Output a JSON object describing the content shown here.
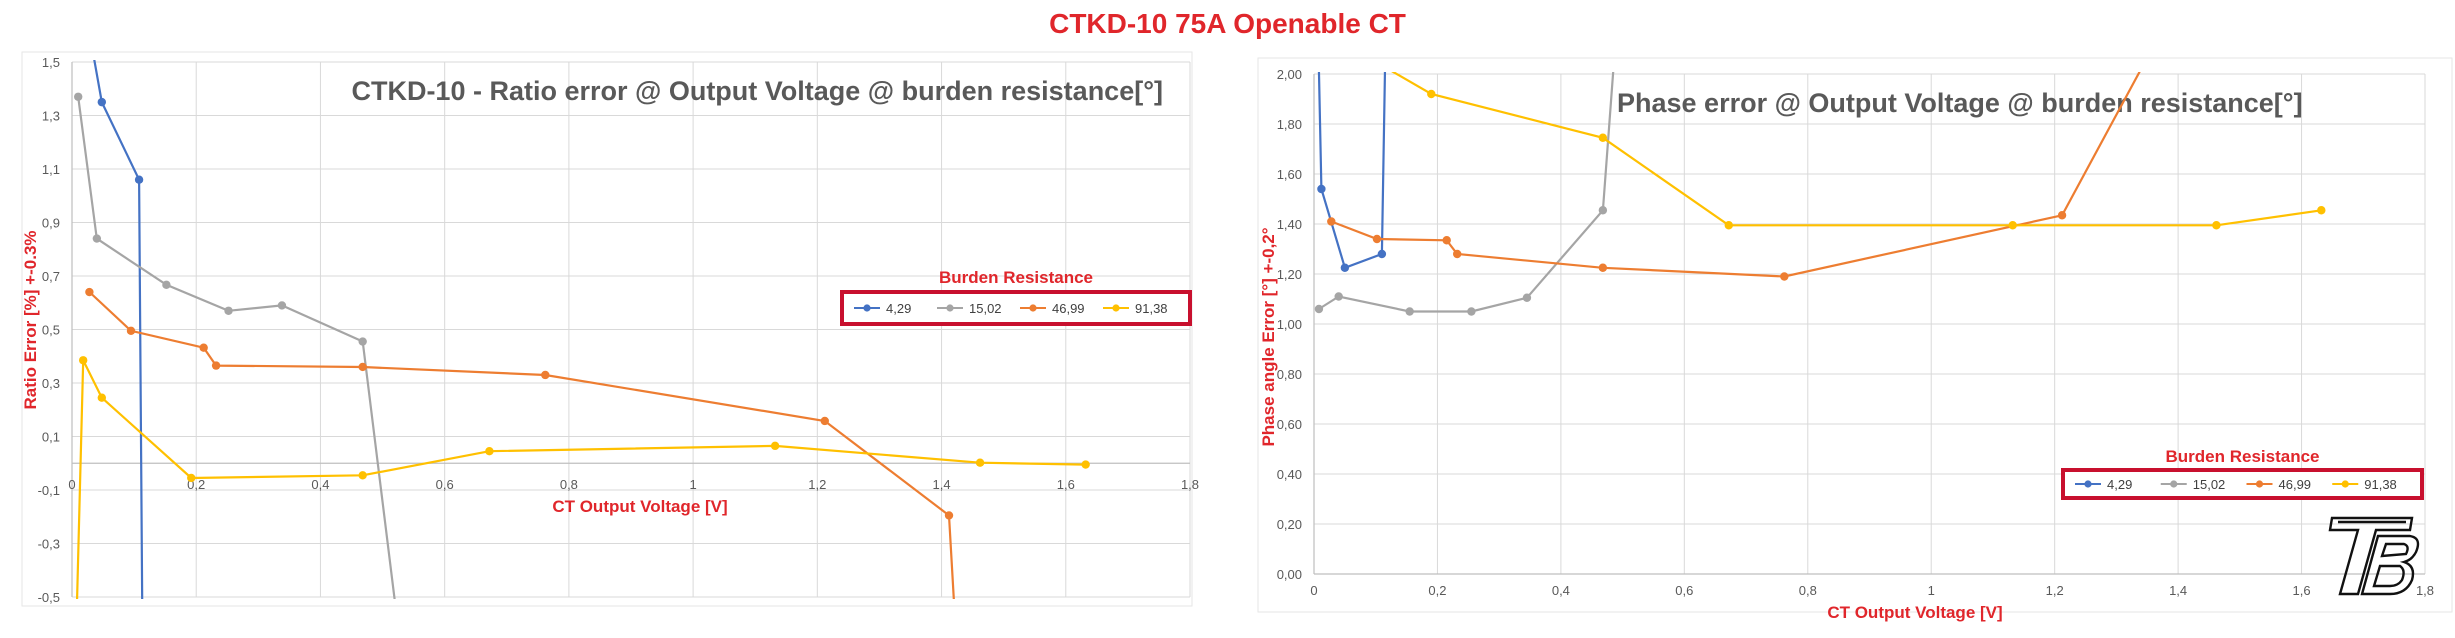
{
  "page_title": "CTKD-10 75A Openable CT",
  "colors": {
    "4,29": "#4472c4",
    "15,02": "#a5a5a5",
    "46,99": "#ed7d31",
    "91,38": "#ffc000"
  },
  "logo_icon": "tb-logo-icon",
  "chart_data": [
    {
      "type": "line",
      "title": "CTKD-10 - Ratio error @ Output Voltage @ burden resistance[°]",
      "xlabel": "CT Output Voltage [V]",
      "ylabel": "Ratio Error [%] +-0.3%",
      "xlim": [
        0,
        1.8
      ],
      "ylim": [
        -0.5,
        1.5
      ],
      "x_ticks": [
        0,
        0.2,
        0.4,
        0.6,
        0.8,
        1,
        1.2,
        1.4,
        1.6,
        1.8
      ],
      "x_tick_labels": [
        "0",
        "0,2",
        "0,4",
        "0,6",
        "0,8",
        "1",
        "1,2",
        "1,4",
        "1,6",
        "1,8"
      ],
      "y_ticks": [
        -0.5,
        -0.3,
        -0.1,
        0.1,
        0.3,
        0.5,
        0.7,
        0.9,
        1.1,
        1.3,
        1.5
      ],
      "y_tick_labels": [
        "-0,5",
        "-0,3",
        "-0,1",
        "0,1",
        "0,3",
        "0,5",
        "0,7",
        "0,9",
        "1,1",
        "1,3",
        "1,5"
      ],
      "grid": true,
      "legend_title": "Burden Resistance",
      "legend_position": "center-right",
      "series": [
        {
          "name": "4,29",
          "points": [
            [
              0.035,
              1.52
            ],
            [
              0.048,
              1.35
            ],
            [
              0.108,
              1.06
            ],
            [
              0.113,
              -0.52
            ]
          ]
        },
        {
          "name": "15,02",
          "points": [
            [
              0.01,
              1.37
            ],
            [
              0.04,
              0.84
            ],
            [
              0.152,
              0.667
            ],
            [
              0.252,
              0.57
            ],
            [
              0.338,
              0.59
            ],
            [
              0.468,
              0.455
            ],
            [
              0.52,
              -0.52
            ]
          ]
        },
        {
          "name": "46,99",
          "points": [
            [
              0.028,
              0.64
            ],
            [
              0.095,
              0.495
            ],
            [
              0.212,
              0.432
            ],
            [
              0.232,
              0.365
            ],
            [
              0.468,
              0.36
            ],
            [
              0.762,
              0.33
            ],
            [
              1.212,
              0.158
            ],
            [
              1.412,
              -0.195
            ],
            [
              1.42,
              -0.52
            ]
          ]
        },
        {
          "name": "91,38",
          "points": [
            [
              0.008,
              -0.52
            ],
            [
              0.018,
              0.385
            ],
            [
              0.048,
              0.245
            ],
            [
              0.192,
              -0.055
            ],
            [
              0.468,
              -0.045
            ],
            [
              0.672,
              0.045
            ],
            [
              1.132,
              0.065
            ],
            [
              1.462,
              0.002
            ],
            [
              1.632,
              -0.005
            ]
          ]
        }
      ]
    },
    {
      "type": "line",
      "title": "Phase error @ Output Voltage @ burden resistance[°]",
      "xlabel": "CT Output Voltage [V]",
      "ylabel": "Phase angle Error [°] +-0,2°",
      "xlim": [
        0,
        1.8
      ],
      "ylim": [
        0,
        2
      ],
      "x_ticks": [
        0,
        0.2,
        0.4,
        0.6,
        0.8,
        1,
        1.2,
        1.4,
        1.6,
        1.8
      ],
      "x_tick_labels": [
        "0",
        "0,2",
        "0,4",
        "0,6",
        "0,8",
        "1",
        "1,2",
        "1,4",
        "1,6",
        "1,8"
      ],
      "y_ticks": [
        0,
        0.2,
        0.4,
        0.6,
        0.8,
        1,
        1.2,
        1.4,
        1.6,
        1.8,
        2
      ],
      "y_tick_labels": [
        "0,00",
        "0,20",
        "0,40",
        "0,60",
        "0,80",
        "1,00",
        "1,20",
        "1,40",
        "1,60",
        "1,80",
        "2,00"
      ],
      "grid": true,
      "legend_title": "Burden Resistance",
      "legend_position": "bottom-right",
      "series": [
        {
          "name": "4,29",
          "points": [
            [
              0.008,
              2.02
            ],
            [
              0.012,
              1.54
            ],
            [
              0.05,
              1.225
            ],
            [
              0.11,
              1.28
            ],
            [
              0.115,
              2.02
            ]
          ]
        },
        {
          "name": "15,02",
          "points": [
            [
              0.008,
              1.06
            ],
            [
              0.04,
              1.11
            ],
            [
              0.155,
              1.05
            ],
            [
              0.255,
              1.05
            ],
            [
              0.345,
              1.105
            ],
            [
              0.468,
              1.455
            ],
            [
              0.485,
              2.02
            ]
          ]
        },
        {
          "name": "46,99",
          "points": [
            [
              0.028,
              1.41
            ],
            [
              0.102,
              1.34
            ],
            [
              0.215,
              1.335
            ],
            [
              0.232,
              1.28
            ],
            [
              0.468,
              1.225
            ],
            [
              0.762,
              1.19
            ],
            [
              1.212,
              1.435
            ],
            [
              1.34,
              2.02
            ]
          ]
        },
        {
          "name": "91,38",
          "points": [
            [
              0.12,
              2.02
            ],
            [
              0.19,
              1.92
            ],
            [
              0.468,
              1.745
            ],
            [
              0.672,
              1.395
            ],
            [
              1.132,
              1.395
            ],
            [
              1.462,
              1.395
            ],
            [
              1.632,
              1.455
            ]
          ]
        }
      ]
    }
  ]
}
